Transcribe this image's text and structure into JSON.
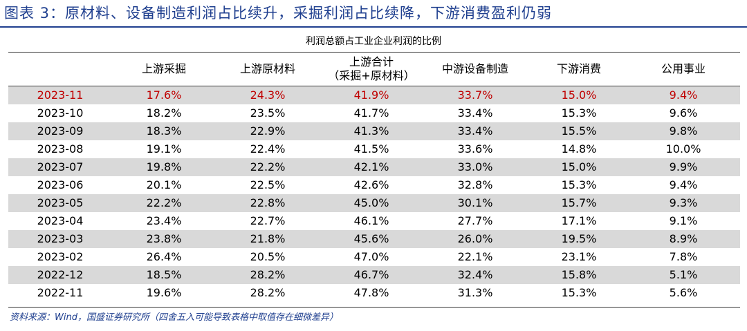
{
  "figure": {
    "title": "图表 3：原材料、设备制造利润占比续升，采掘利润占比续降，下游消费盈利仍弱",
    "table_caption": "利润总额占工业企业利润的比例",
    "source_note": "资料来源：Wind，国盛证券研究所（四舍五入可能导致表格中取值存在细微差异）"
  },
  "table": {
    "headers": [
      {
        "line1": "",
        "line2": ""
      },
      {
        "line1": "上游采掘",
        "line2": ""
      },
      {
        "line1": "上游原材料",
        "line2": ""
      },
      {
        "line1": "上游合计",
        "line2": "（采掘+原材料）"
      },
      {
        "line1": "中游设备制造",
        "line2": ""
      },
      {
        "line1": "下游消费",
        "line2": ""
      },
      {
        "line1": "公用事业",
        "line2": ""
      }
    ],
    "rows": [
      [
        "2023-11",
        "17.6%",
        "24.3%",
        "41.9%",
        "33.7%",
        "15.0%",
        "9.4%"
      ],
      [
        "2023-10",
        "18.2%",
        "23.5%",
        "41.7%",
        "33.4%",
        "15.3%",
        "9.6%"
      ],
      [
        "2023-09",
        "18.3%",
        "22.9%",
        "41.3%",
        "33.4%",
        "15.5%",
        "9.8%"
      ],
      [
        "2023-08",
        "19.1%",
        "22.4%",
        "41.5%",
        "33.6%",
        "14.8%",
        "10.0%"
      ],
      [
        "2023-07",
        "19.8%",
        "22.2%",
        "42.1%",
        "33.0%",
        "15.0%",
        "9.9%"
      ],
      [
        "2023-06",
        "20.1%",
        "22.5%",
        "42.6%",
        "32.8%",
        "15.3%",
        "9.4%"
      ],
      [
        "2023-05",
        "22.2%",
        "22.8%",
        "45.0%",
        "30.1%",
        "15.7%",
        "9.3%"
      ],
      [
        "2023-04",
        "23.4%",
        "22.7%",
        "46.1%",
        "27.7%",
        "17.1%",
        "9.1%"
      ],
      [
        "2023-03",
        "23.8%",
        "21.8%",
        "45.6%",
        "26.0%",
        "19.5%",
        "8.9%"
      ],
      [
        "2023-02",
        "26.4%",
        "20.5%",
        "47.0%",
        "22.1%",
        "23.1%",
        "7.8%"
      ],
      [
        "2022-12",
        "18.5%",
        "28.2%",
        "46.7%",
        "32.4%",
        "15.8%",
        "5.1%"
      ],
      [
        "2022-11",
        "19.6%",
        "28.2%",
        "47.8%",
        "31.3%",
        "15.3%",
        "5.6%"
      ]
    ],
    "highlight_row": 0,
    "highlight_color": "#c00000",
    "shade_color": "#d9d9d9",
    "title_color": "#1f3f8f"
  }
}
